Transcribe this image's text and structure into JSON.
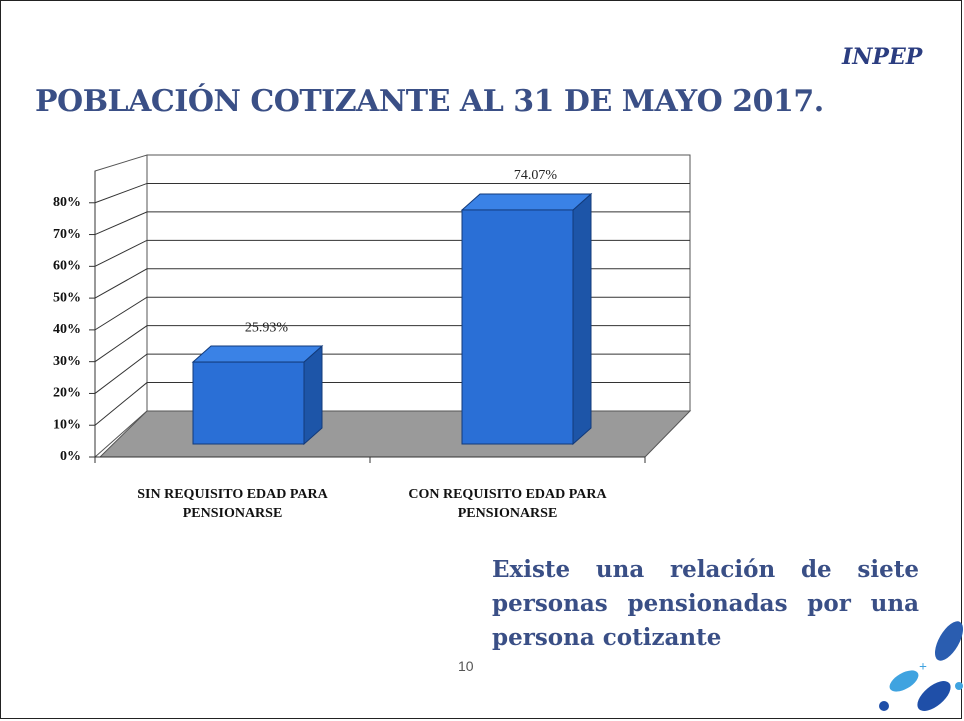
{
  "chart_data": {
    "type": "bar3d",
    "title": "POBLACIÓN COTIZANTE AL 31 DE MAYO 2017.",
    "logo_text": "INPEP",
    "categories": [
      "SIN REQUISITO EDAD PARA PENSIONARSE",
      "CON REQUISITO EDAD PARA PENSIONARSE"
    ],
    "values": [
      25.93,
      74.07
    ],
    "value_labels": [
      "25.93%",
      "74.07%"
    ],
    "color": "#2a6fd6",
    "ylim": [
      0,
      90
    ],
    "yticks": [
      {
        "value": 0,
        "label": "0%"
      },
      {
        "value": 10,
        "label": "10%"
      },
      {
        "value": 20,
        "label": "20%"
      },
      {
        "value": 30,
        "label": "30%"
      },
      {
        "value": 40,
        "label": "40%"
      },
      {
        "value": 50,
        "label": "50%"
      },
      {
        "value": 60,
        "label": "60%"
      },
      {
        "value": 70,
        "label": "70%"
      },
      {
        "value": 80,
        "label": "80%"
      }
    ],
    "grid": true,
    "annotation": "Existe una relación de siete personas pensionadas por una persona cotizante",
    "page_number": "10"
  }
}
